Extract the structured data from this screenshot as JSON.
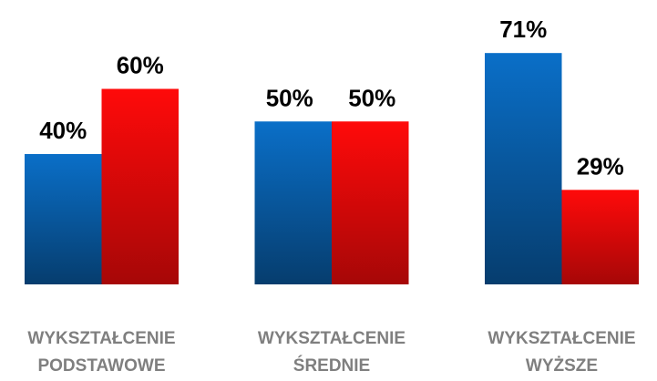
{
  "chart_data": {
    "type": "bar",
    "categories": [
      "WYKSZTAŁCENIE PODSTAWOWE",
      "WYKSZTAŁCENIE ŚREDNIE",
      "WYKSZTAŁCENIE WYŻSZE"
    ],
    "series": [
      {
        "color": "#0a6fc8",
        "values": [
          40,
          50,
          71
        ],
        "value_labels": [
          "40%",
          "50%",
          "71%"
        ]
      },
      {
        "color": "#ff0a0a",
        "values": [
          60,
          50,
          29
        ],
        "value_labels": [
          "60%",
          "50%",
          "29%"
        ]
      }
    ],
    "ylim": [
      0,
      80
    ]
  }
}
